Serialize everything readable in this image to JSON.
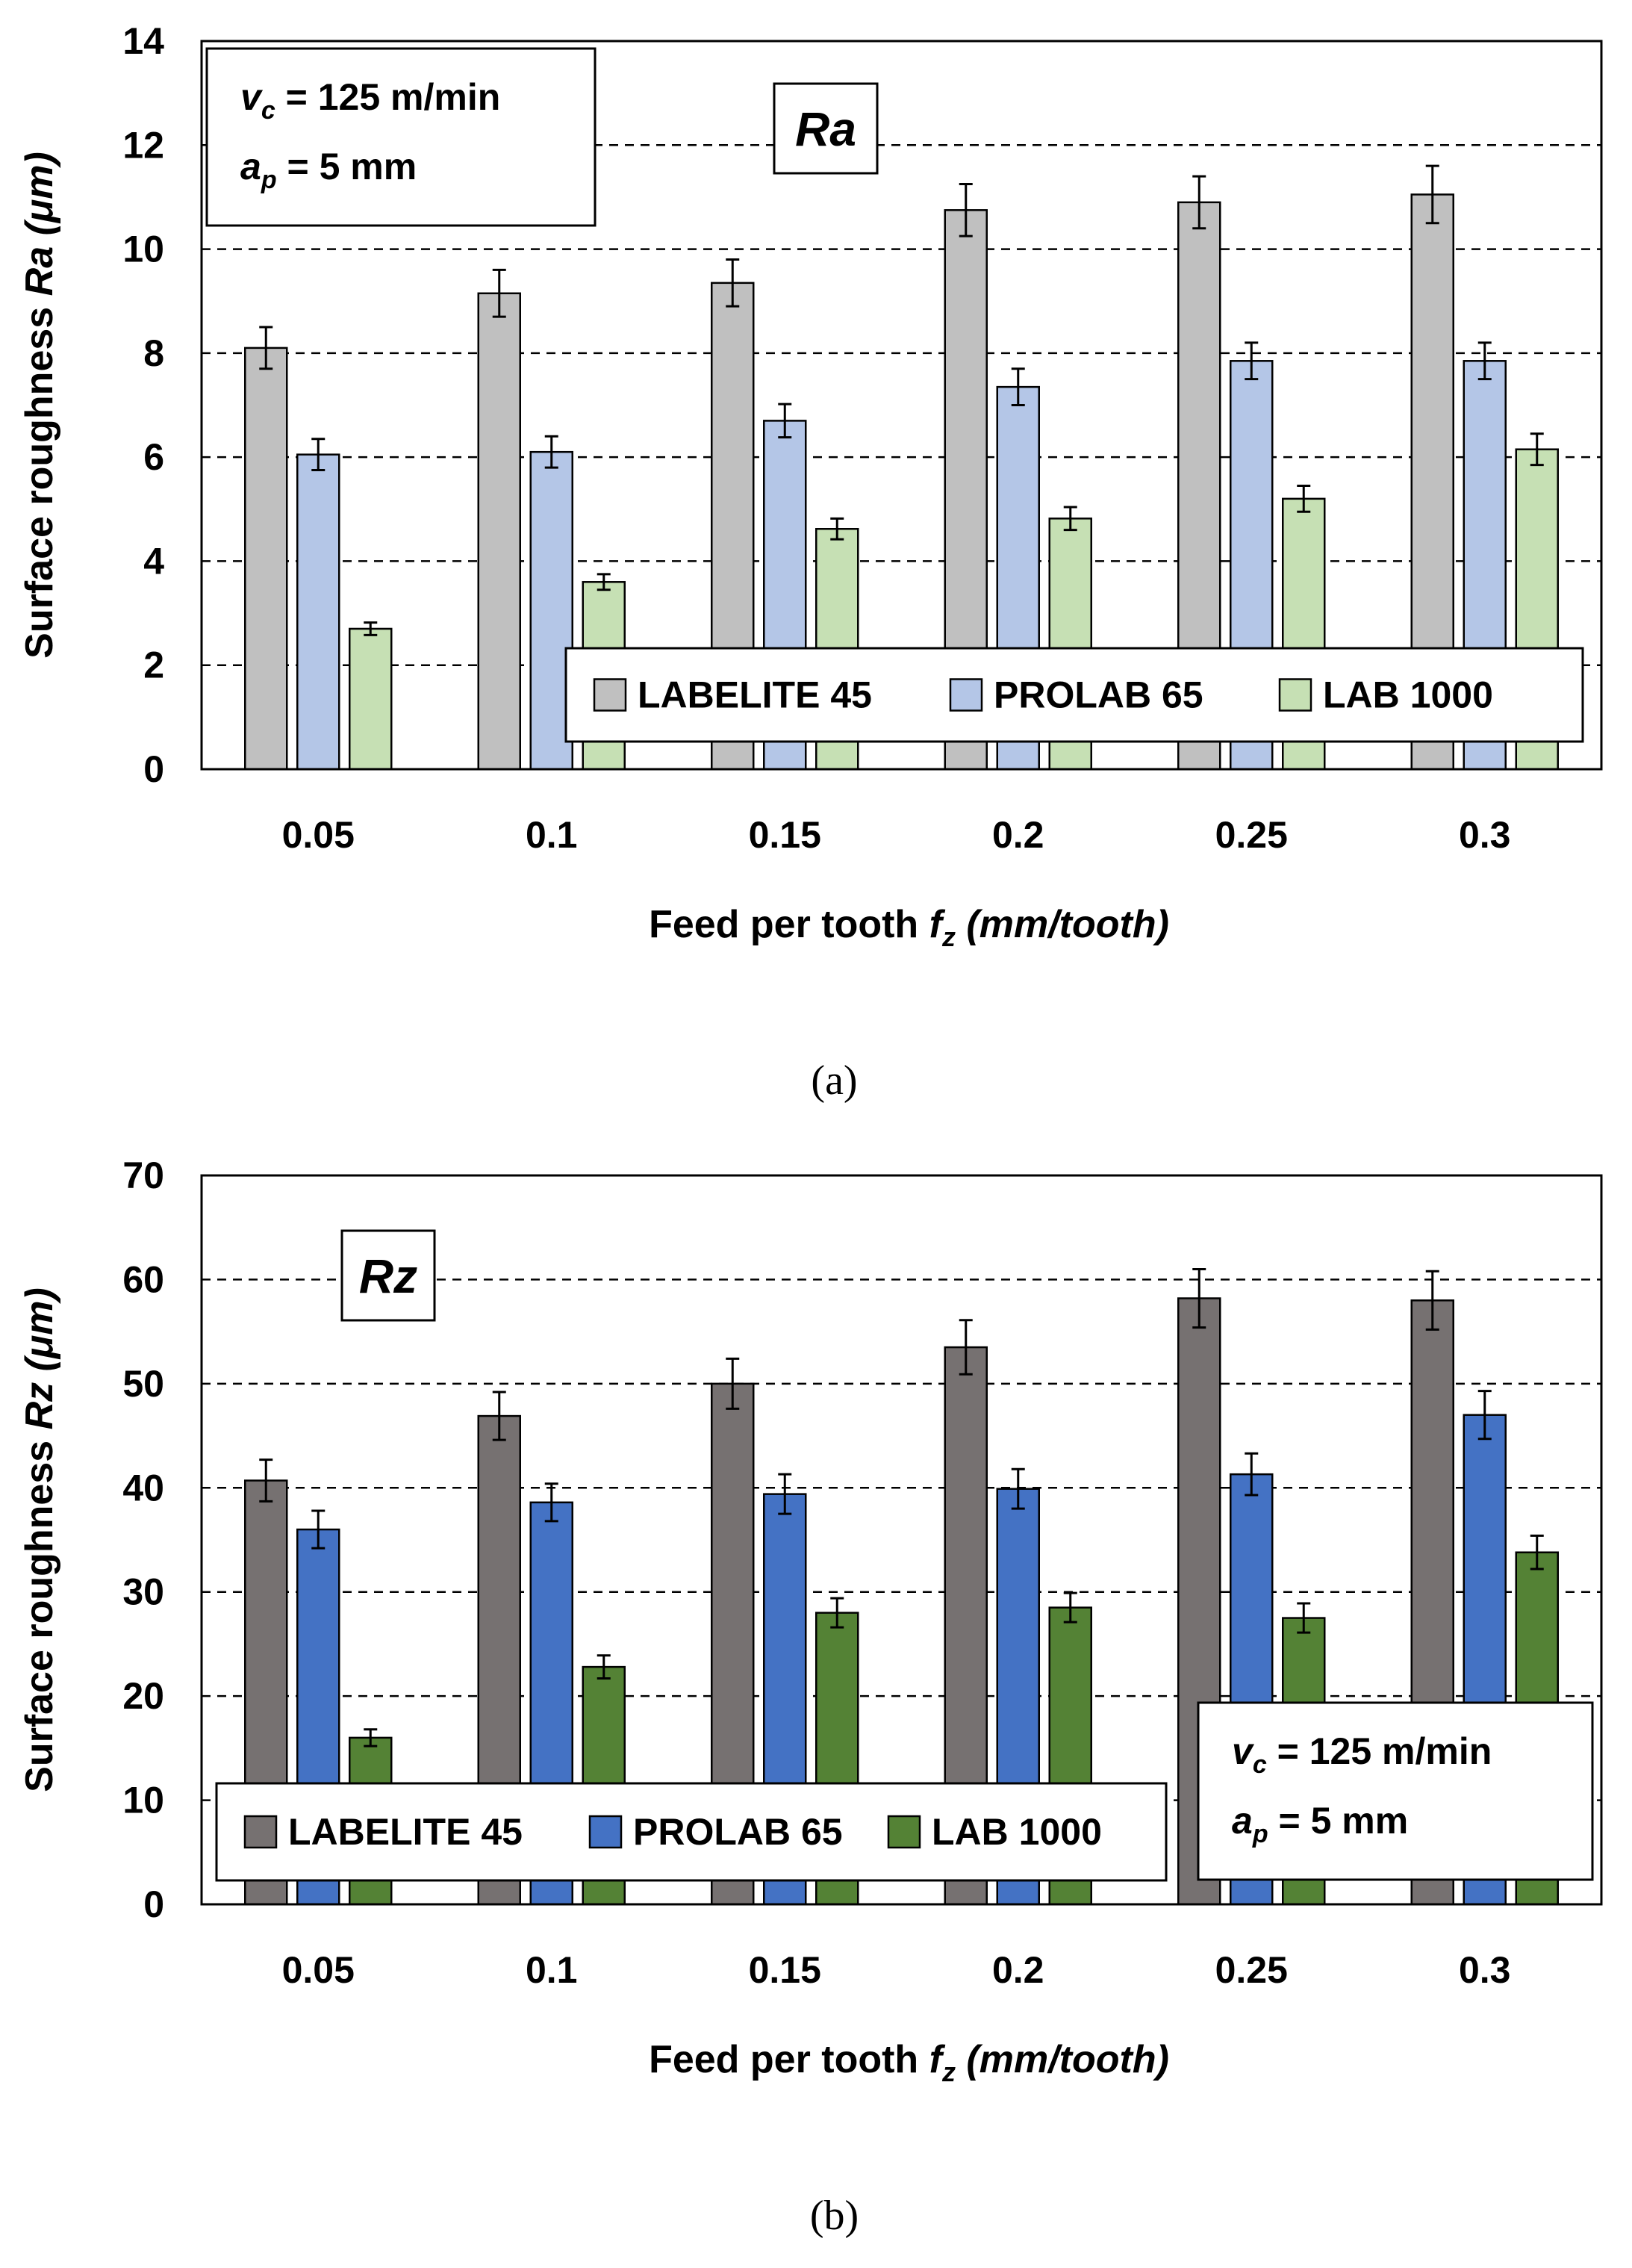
{
  "chart_data": [
    {
      "type": "bar",
      "panel_caption": "(a)",
      "metric_label": "Ra",
      "params": {
        "line1": {
          "var": "v",
          "sub": "c",
          "rest": " = 125 m/min"
        },
        "line2": {
          "var": "a",
          "sub": "p",
          "rest": " = 5 mm"
        }
      },
      "xlabel": {
        "main": "Feed per tooth ",
        "var": "f",
        "sub": "z",
        "unit": " (mm/tooth)"
      },
      "ylabel": {
        "main": "Surface roughness ",
        "var": "Ra",
        "unit": " (μm)"
      },
      "ylim": [
        0,
        14
      ],
      "yticks": [
        0,
        2,
        4,
        6,
        8,
        10,
        12,
        14
      ],
      "grid": "dashed horizontal",
      "legend_position": "bottom-right",
      "categories": [
        "0.05",
        "0.1",
        "0.15",
        "0.2",
        "0.25",
        "0.3"
      ],
      "series": [
        {
          "name": "LABELITE 45",
          "color": "#c0c0c0",
          "values": [
            8.1,
            9.15,
            9.35,
            10.75,
            10.9,
            11.05
          ],
          "errors": [
            0.4,
            0.45,
            0.45,
            0.5,
            0.5,
            0.55
          ]
        },
        {
          "name": "PROLAB 65",
          "color": "#b4c6e7",
          "values": [
            6.05,
            6.1,
            6.7,
            7.35,
            7.85,
            7.85
          ],
          "errors": [
            0.3,
            0.3,
            0.32,
            0.35,
            0.35,
            0.35
          ]
        },
        {
          "name": "LAB 1000",
          "color": "#c6e0b4",
          "values": [
            2.7,
            3.6,
            4.62,
            4.82,
            5.2,
            6.15
          ],
          "errors": [
            0.12,
            0.15,
            0.2,
            0.22,
            0.25,
            0.3
          ]
        }
      ]
    },
    {
      "type": "bar",
      "panel_caption": "(b)",
      "metric_label": "Rz",
      "params": {
        "line1": {
          "var": "v",
          "sub": "c",
          "rest": " = 125 m/min"
        },
        "line2": {
          "var": "a",
          "sub": "p",
          "rest": " = 5 mm"
        }
      },
      "xlabel": {
        "main": "Feed per tooth ",
        "var": "f",
        "sub": "z",
        "unit": " (mm/tooth)"
      },
      "ylabel": {
        "main": "Surface roughness ",
        "var": "Rz",
        "unit": " (μm)"
      },
      "ylim": [
        0,
        70
      ],
      "yticks": [
        0,
        10,
        20,
        30,
        40,
        50,
        60,
        70
      ],
      "grid": "dashed horizontal",
      "legend_position": "bottom-left",
      "categories": [
        "0.05",
        "0.1",
        "0.15",
        "0.2",
        "0.25",
        "0.3"
      ],
      "series": [
        {
          "name": "LABELITE 45",
          "color": "#767171",
          "values": [
            40.7,
            46.9,
            50.0,
            53.5,
            58.2,
            58.0
          ],
          "errors": [
            2.0,
            2.3,
            2.4,
            2.6,
            2.8,
            2.8
          ]
        },
        {
          "name": "PROLAB 65",
          "color": "#4472c4",
          "values": [
            36.0,
            38.6,
            39.4,
            39.9,
            41.3,
            47.0
          ],
          "errors": [
            1.8,
            1.8,
            1.9,
            1.9,
            2.0,
            2.3
          ]
        },
        {
          "name": "LAB 1000",
          "color": "#548235",
          "values": [
            16.0,
            22.8,
            28.0,
            28.5,
            27.5,
            33.8
          ],
          "errors": [
            0.8,
            1.1,
            1.4,
            1.4,
            1.4,
            1.6
          ]
        }
      ]
    }
  ]
}
